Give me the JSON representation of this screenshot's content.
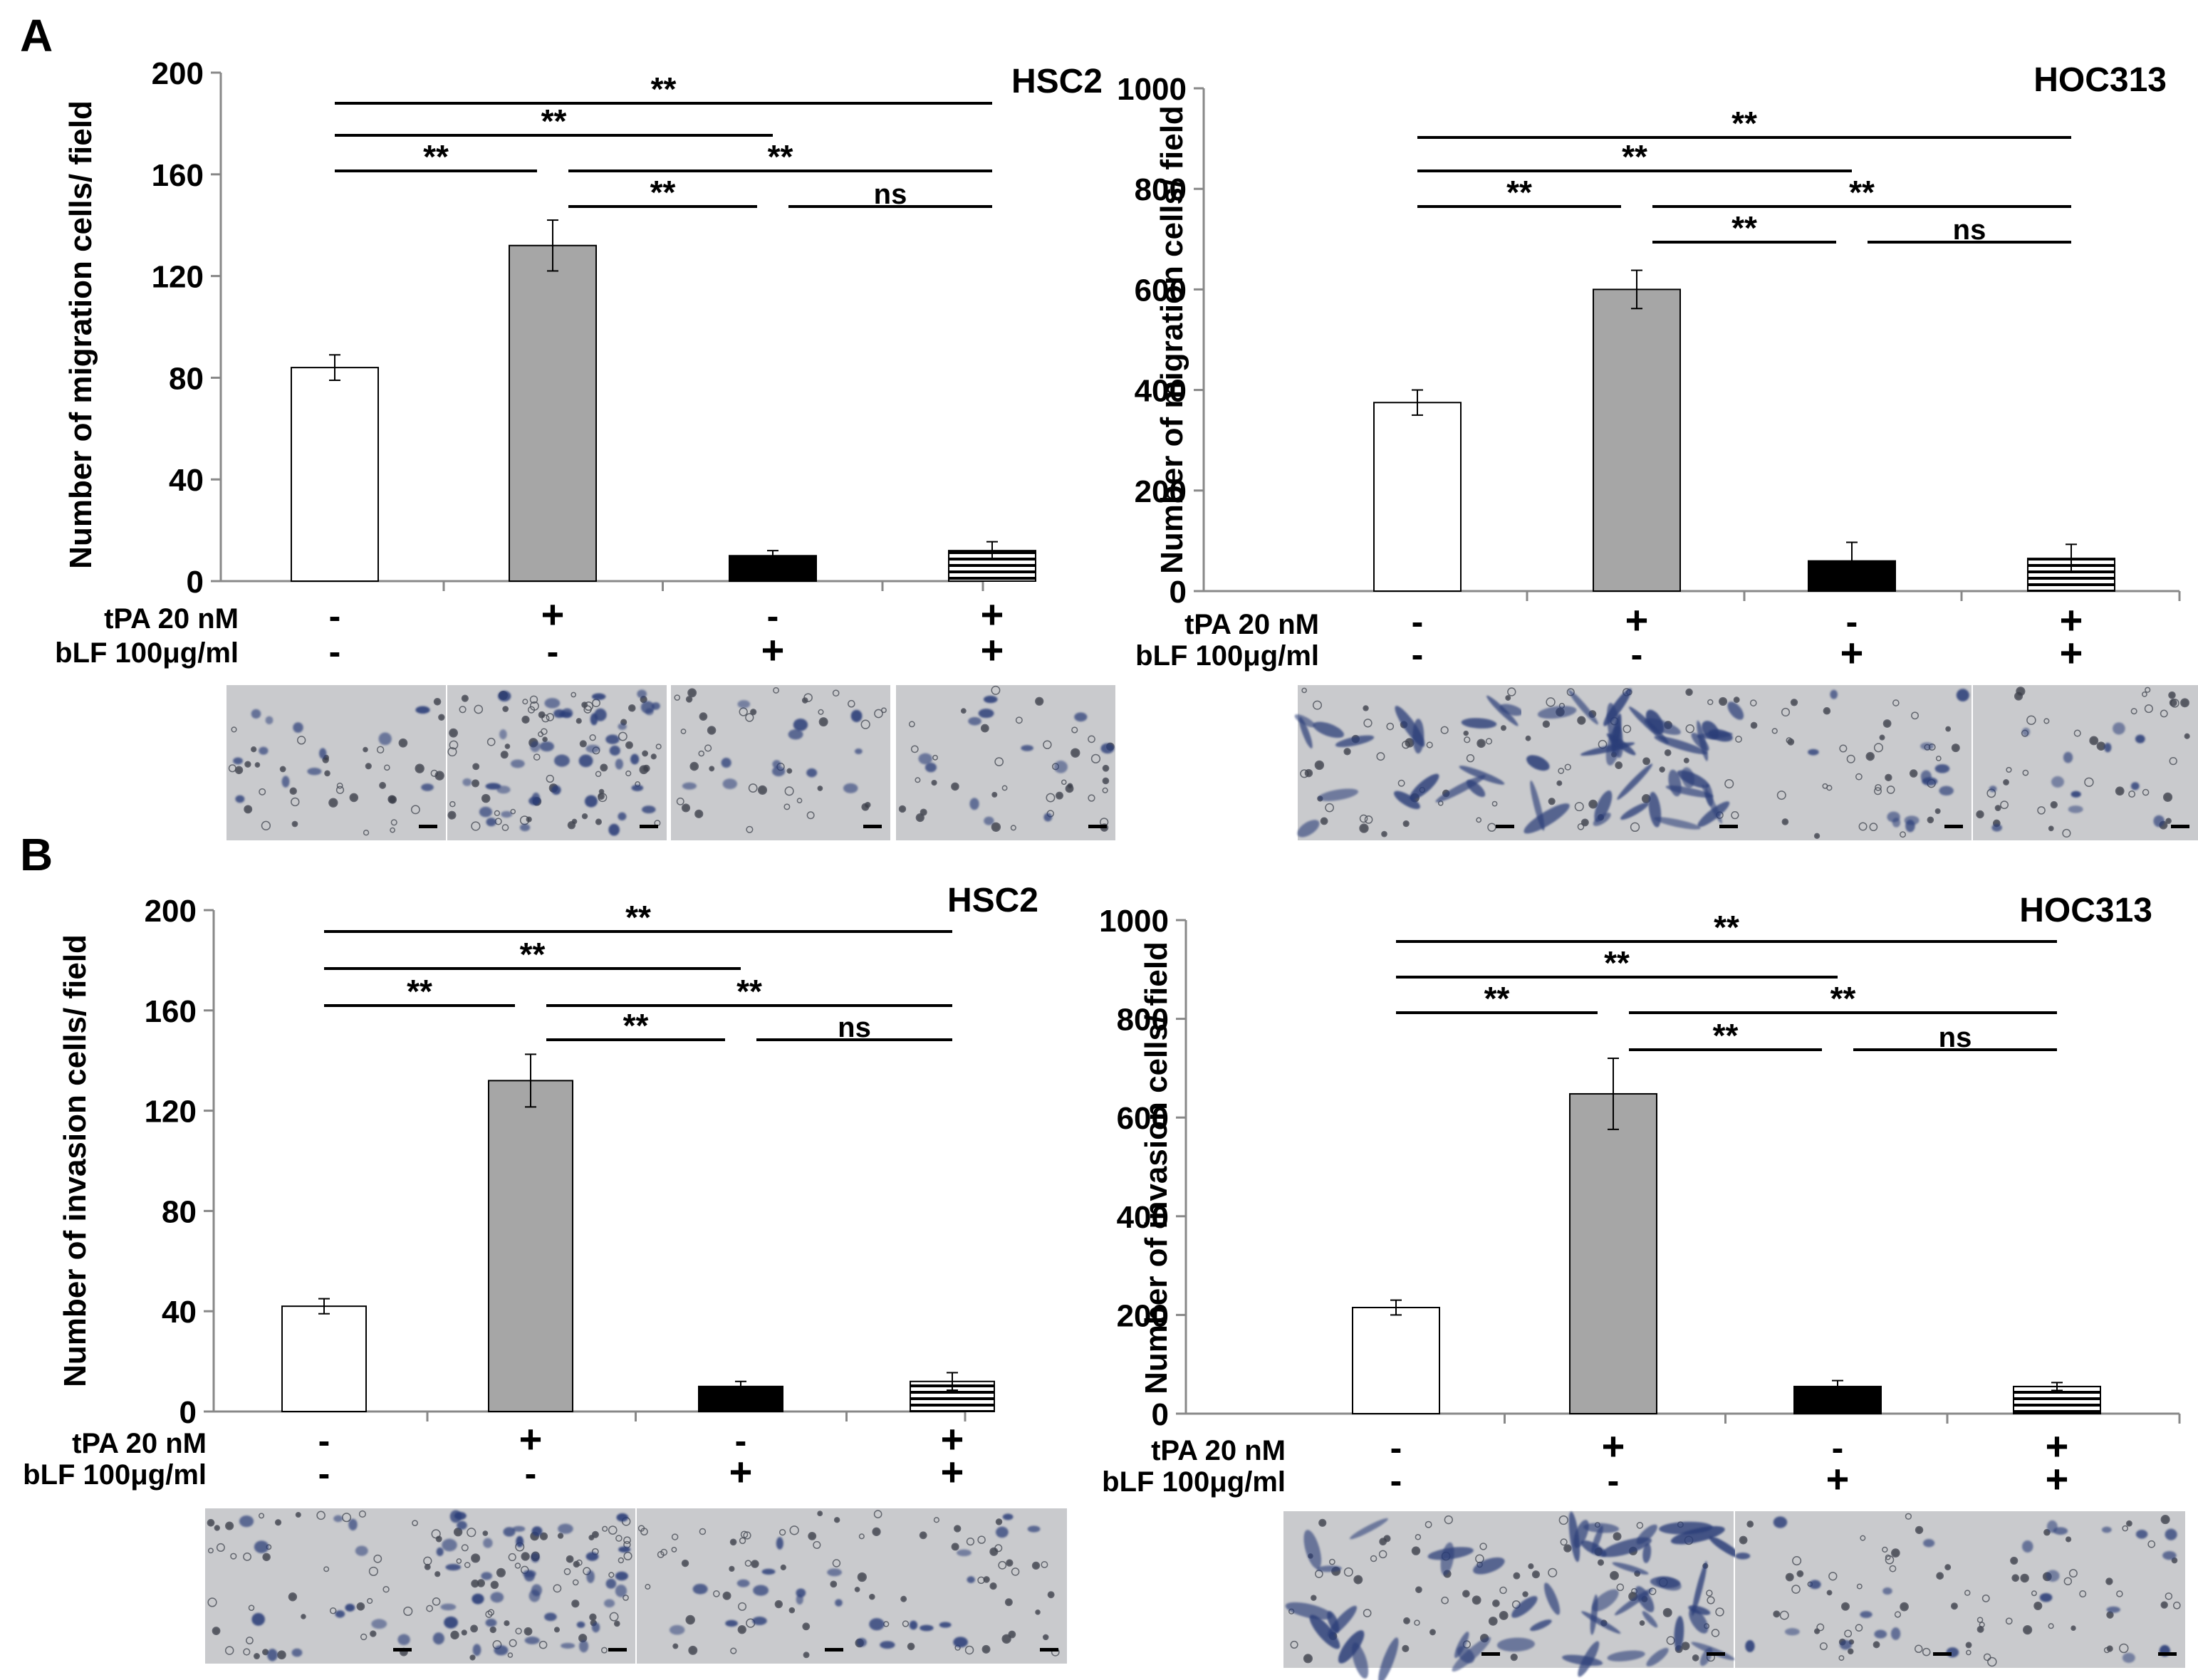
{
  "panel_labels": [
    "A",
    "B"
  ],
  "treatment_labels": {
    "tpa": "tPA 20 nM",
    "blf": "bLF 100μg/ml"
  },
  "signs": {
    "plus": "+",
    "minus": "-"
  },
  "chart_data": [
    {
      "id": "A1",
      "type": "bar",
      "panel": "A",
      "cell_line": "HSC2",
      "ylabel": "Number of migration cells/ field",
      "ylim": [
        0,
        200
      ],
      "yticks": [
        0,
        40,
        80,
        120,
        160,
        200
      ],
      "categories": [
        "1",
        "2",
        "3",
        "4"
      ],
      "tpa": [
        "-",
        "+",
        "-",
        "+"
      ],
      "blf": [
        "-",
        "-",
        "+",
        "+"
      ],
      "values": [
        84,
        132,
        10,
        12
      ],
      "errors": [
        5,
        10,
        2,
        3.5
      ],
      "fills": [
        "white",
        "gray",
        "black",
        "hstripes"
      ],
      "significance": [
        {
          "from": 0,
          "to": 3,
          "label": "**"
        },
        {
          "from": 0,
          "to": 2,
          "label": "**"
        },
        {
          "from": 0,
          "to": 1,
          "label": "**"
        },
        {
          "from": 1,
          "to": 3,
          "label": "**"
        },
        {
          "from": 1,
          "to": 2,
          "label": "**"
        },
        {
          "from": 2,
          "to": 3,
          "label": "ns"
        }
      ]
    },
    {
      "id": "A2",
      "type": "bar",
      "panel": "A",
      "cell_line": "HOC313",
      "ylabel": "Number of migration cells/ field",
      "ylim": [
        0,
        1000
      ],
      "yticks": [
        0,
        200,
        400,
        600,
        800,
        1000
      ],
      "categories": [
        "1",
        "2",
        "3",
        "4"
      ],
      "tpa": [
        "-",
        "+",
        "-",
        "+"
      ],
      "blf": [
        "-",
        "-",
        "+",
        "+"
      ],
      "values": [
        375,
        600,
        60,
        65
      ],
      "errors": [
        25,
        38,
        37,
        28
      ],
      "fills": [
        "white",
        "gray",
        "black",
        "hstripes"
      ],
      "significance": [
        {
          "from": 0,
          "to": 3,
          "label": "**"
        },
        {
          "from": 0,
          "to": 2,
          "label": "**"
        },
        {
          "from": 0,
          "to": 1,
          "label": "**"
        },
        {
          "from": 1,
          "to": 3,
          "label": "**"
        },
        {
          "from": 1,
          "to": 2,
          "label": "**"
        },
        {
          "from": 2,
          "to": 3,
          "label": "ns"
        }
      ]
    },
    {
      "id": "B1",
      "type": "bar",
      "panel": "B",
      "cell_line": "HSC2",
      "ylabel": "Number of invasion cells/ field",
      "ylim": [
        0,
        200
      ],
      "yticks": [
        0,
        40,
        80,
        120,
        160,
        200
      ],
      "categories": [
        "1",
        "2",
        "3",
        "4"
      ],
      "tpa": [
        "-",
        "+",
        "-",
        "+"
      ],
      "blf": [
        "-",
        "-",
        "+",
        "+"
      ],
      "values": [
        42,
        132,
        10,
        12
      ],
      "errors": [
        3,
        10.5,
        2,
        3.5
      ],
      "fills": [
        "white",
        "gray",
        "black",
        "hstripes"
      ],
      "significance": [
        {
          "from": 0,
          "to": 3,
          "label": "**"
        },
        {
          "from": 0,
          "to": 2,
          "label": "**"
        },
        {
          "from": 0,
          "to": 1,
          "label": "**"
        },
        {
          "from": 1,
          "to": 3,
          "label": "**"
        },
        {
          "from": 1,
          "to": 2,
          "label": "**"
        },
        {
          "from": 2,
          "to": 3,
          "label": "ns"
        }
      ]
    },
    {
      "id": "B2",
      "type": "bar",
      "panel": "B",
      "cell_line": "HOC313",
      "ylabel": "Number of invasion cells/ field",
      "ylim": [
        0,
        1000
      ],
      "yticks": [
        0,
        200,
        400,
        600,
        800,
        1000
      ],
      "categories": [
        "1",
        "2",
        "3",
        "4"
      ],
      "tpa": [
        "-",
        "+",
        "-",
        "+"
      ],
      "blf": [
        "-",
        "-",
        "+",
        "+"
      ],
      "values": [
        215,
        648,
        55,
        55
      ],
      "errors": [
        15,
        72,
        12,
        8
      ],
      "fills": [
        "white",
        "gray",
        "black",
        "hstripes"
      ],
      "significance": [
        {
          "from": 0,
          "to": 3,
          "label": "**"
        },
        {
          "from": 0,
          "to": 2,
          "label": "**"
        },
        {
          "from": 0,
          "to": 1,
          "label": "**"
        },
        {
          "from": 1,
          "to": 3,
          "label": "**"
        },
        {
          "from": 1,
          "to": 2,
          "label": "**"
        },
        {
          "from": 2,
          "to": 3,
          "label": "ns"
        }
      ]
    }
  ],
  "micrographs": [
    {
      "chart": "A1",
      "appearance": "few small round cells",
      "scale_bar": true
    },
    {
      "chart": "A1",
      "appearance": "many small round cells",
      "scale_bar": true
    },
    {
      "chart": "A1",
      "appearance": "few small round cells",
      "scale_bar": true
    },
    {
      "chart": "A1",
      "appearance": "few small round cells",
      "scale_bar": true
    },
    {
      "chart": "A2",
      "appearance": "elongated spindle cells",
      "scale_bar": true
    },
    {
      "chart": "A2",
      "appearance": "many elongated spindle cells",
      "scale_bar": true
    },
    {
      "chart": "A2",
      "appearance": "few small round cells",
      "scale_bar": true
    },
    {
      "chart": "A2",
      "appearance": "few small round cells",
      "scale_bar": true
    },
    {
      "chart": "B1",
      "appearance": "few small round cells",
      "scale_bar": true
    },
    {
      "chart": "B1",
      "appearance": "many small round cells",
      "scale_bar": true
    },
    {
      "chart": "B1",
      "appearance": "few small round cells",
      "scale_bar": true
    },
    {
      "chart": "B1",
      "appearance": "few small round cells",
      "scale_bar": true
    },
    {
      "chart": "B2",
      "appearance": "elongated spindle cells",
      "scale_bar": true
    },
    {
      "chart": "B2",
      "appearance": "many elongated spindle cells",
      "scale_bar": true
    },
    {
      "chart": "B2",
      "appearance": "few small round cells",
      "scale_bar": true
    },
    {
      "chart": "B2",
      "appearance": "few small round cells",
      "scale_bar": true
    }
  ],
  "colors": {
    "gray_bar": "#a6a6a6",
    "black_bar": "#000000",
    "micrograph_bg": "#c9cacd",
    "stain": "#2c3e78"
  }
}
